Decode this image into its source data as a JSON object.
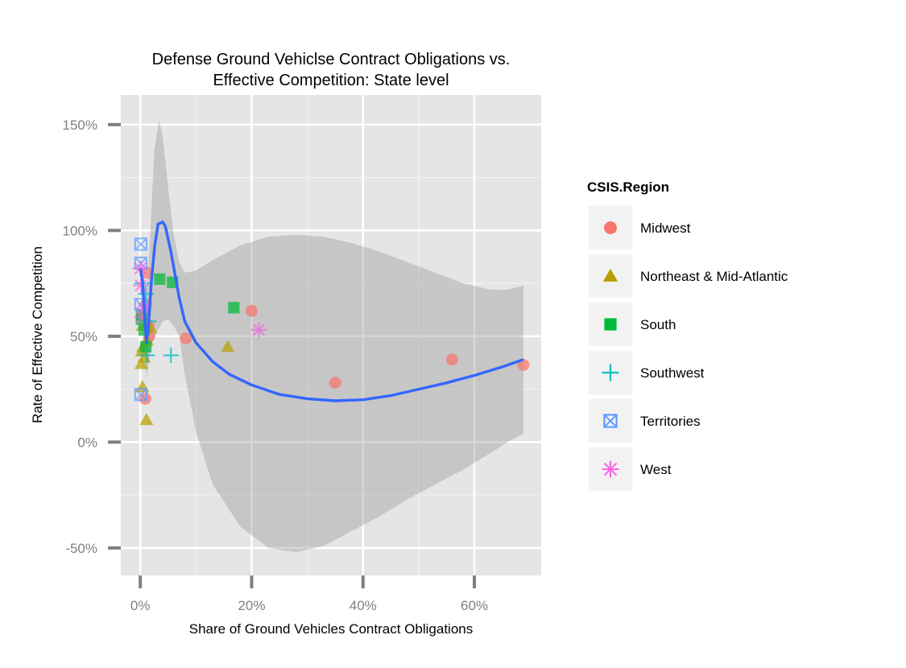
{
  "chart_data": {
    "type": "scatter",
    "title_lines": [
      "Defense Ground Vehiclse Contract Obligations vs.",
      "Effective Competition: State level"
    ],
    "xlabel": "Share of Ground Vehicles Contract Obligations",
    "ylabel": "Rate of Effective Competition",
    "xlim": [
      -0.035,
      0.72
    ],
    "ylim": [
      -0.63,
      1.64
    ],
    "x_ticks": [
      0,
      0.2,
      0.4,
      0.6
    ],
    "x_tick_labels": [
      "0%",
      "20%",
      "40%",
      "60%"
    ],
    "y_ticks": [
      -0.5,
      0,
      0.5,
      1.0,
      1.5
    ],
    "y_tick_labels": [
      "-50%",
      "0%",
      "50%",
      "100%",
      "150%"
    ],
    "grid": true,
    "legend_position": "right",
    "legend": {
      "title": "CSIS.Region",
      "items": [
        {
          "label": "Midwest",
          "color": "#F8766D",
          "shape": "circle"
        },
        {
          "label": "Northeast & Mid-Atlantic",
          "color": "#B79F00",
          "shape": "triangle"
        },
        {
          "label": "South",
          "color": "#00BA38",
          "shape": "square"
        },
        {
          "label": "Southwest",
          "color": "#00BFC4",
          "shape": "plus"
        },
        {
          "label": "Territories",
          "color": "#619CFF",
          "shape": "boxcross"
        },
        {
          "label": "West",
          "color": "#F564E3",
          "shape": "asterisk"
        }
      ]
    },
    "series": [
      {
        "name": "Midwest",
        "points": [
          [
            0.009,
            0.205
          ],
          [
            0.082,
            0.49
          ],
          [
            0.2,
            0.62
          ],
          [
            0.35,
            0.28
          ],
          [
            0.56,
            0.39
          ],
          [
            0.688,
            0.365
          ],
          [
            0.012,
            0.8
          ],
          [
            0.01,
            0.65
          ],
          [
            0.015,
            0.55
          ],
          [
            0.016,
            0.5
          ]
        ]
      },
      {
        "name": "Northeast & Mid-Atlantic",
        "points": [
          [
            0.011,
            0.105
          ],
          [
            0.004,
            0.26
          ],
          [
            0.002,
            0.37
          ],
          [
            0.003,
            0.43
          ],
          [
            0.005,
            0.45
          ],
          [
            0.007,
            0.4
          ],
          [
            0.004,
            0.55
          ],
          [
            0.018,
            0.54
          ],
          [
            0.012,
            0.48
          ],
          [
            0.157,
            0.45
          ]
        ]
      },
      {
        "name": "South",
        "points": [
          [
            0.035,
            0.77
          ],
          [
            0.058,
            0.755
          ],
          [
            0.168,
            0.635
          ],
          [
            0.003,
            0.6
          ],
          [
            0.007,
            0.53
          ],
          [
            0.01,
            0.45
          ],
          [
            0.002,
            0.58
          ]
        ]
      },
      {
        "name": "Southwest",
        "points": [
          [
            0.055,
            0.41
          ],
          [
            0.012,
            0.41
          ],
          [
            0.015,
            0.57
          ],
          [
            0.01,
            0.7
          ],
          [
            0.003,
            0.75
          ]
        ]
      },
      {
        "name": "Territories",
        "points": [
          [
            0.001,
            0.935
          ],
          [
            0.001,
            0.845
          ],
          [
            0.001,
            0.65
          ],
          [
            0.001,
            0.225
          ]
        ]
      },
      {
        "name": "West",
        "points": [
          [
            0.213,
            0.53
          ],
          [
            0.0,
            0.82
          ],
          [
            0.001,
            0.74
          ],
          [
            0.002,
            0.59
          ],
          [
            0.006,
            0.63
          ]
        ]
      }
    ],
    "smooth": {
      "method": "loess",
      "color": "#3366FF",
      "fit": [
        [
          0.0,
          0.82
        ],
        [
          0.004,
          0.76
        ],
        [
          0.008,
          0.6
        ],
        [
          0.011,
          0.47
        ],
        [
          0.015,
          0.56
        ],
        [
          0.02,
          0.76
        ],
        [
          0.026,
          0.93
        ],
        [
          0.032,
          1.03
        ],
        [
          0.04,
          1.04
        ],
        [
          0.045,
          1.02
        ],
        [
          0.055,
          0.9
        ],
        [
          0.07,
          0.68
        ],
        [
          0.08,
          0.57
        ],
        [
          0.1,
          0.47
        ],
        [
          0.13,
          0.38
        ],
        [
          0.16,
          0.32
        ],
        [
          0.2,
          0.27
        ],
        [
          0.25,
          0.225
        ],
        [
          0.3,
          0.205
        ],
        [
          0.35,
          0.195
        ],
        [
          0.4,
          0.2
        ],
        [
          0.45,
          0.22
        ],
        [
          0.5,
          0.25
        ],
        [
          0.55,
          0.28
        ],
        [
          0.6,
          0.315
        ],
        [
          0.65,
          0.355
        ],
        [
          0.688,
          0.39
        ]
      ],
      "upper": [
        [
          0.0,
          0.9
        ],
        [
          0.008,
          0.75
        ],
        [
          0.011,
          0.64
        ],
        [
          0.018,
          0.98
        ],
        [
          0.025,
          1.38
        ],
        [
          0.034,
          1.52
        ],
        [
          0.04,
          1.45
        ],
        [
          0.05,
          1.2
        ],
        [
          0.06,
          0.98
        ],
        [
          0.07,
          0.85
        ],
        [
          0.08,
          0.8
        ],
        [
          0.1,
          0.81
        ],
        [
          0.13,
          0.86
        ],
        [
          0.18,
          0.93
        ],
        [
          0.23,
          0.97
        ],
        [
          0.28,
          0.98
        ],
        [
          0.33,
          0.97
        ],
        [
          0.38,
          0.94
        ],
        [
          0.43,
          0.9
        ],
        [
          0.48,
          0.85
        ],
        [
          0.53,
          0.8
        ],
        [
          0.58,
          0.75
        ],
        [
          0.63,
          0.72
        ],
        [
          0.66,
          0.72
        ],
        [
          0.688,
          0.74
        ]
      ],
      "lower": [
        [
          0.688,
          0.04
        ],
        [
          0.66,
          0.0
        ],
        [
          0.63,
          -0.05
        ],
        [
          0.58,
          -0.13
        ],
        [
          0.53,
          -0.2
        ],
        [
          0.48,
          -0.27
        ],
        [
          0.43,
          -0.35
        ],
        [
          0.38,
          -0.42
        ],
        [
          0.33,
          -0.49
        ],
        [
          0.28,
          -0.52
        ],
        [
          0.23,
          -0.5
        ],
        [
          0.18,
          -0.4
        ],
        [
          0.13,
          -0.2
        ],
        [
          0.1,
          0.05
        ],
        [
          0.08,
          0.32
        ],
        [
          0.07,
          0.5
        ],
        [
          0.06,
          0.55
        ],
        [
          0.05,
          0.58
        ],
        [
          0.04,
          0.57
        ],
        [
          0.03,
          0.52
        ],
        [
          0.02,
          0.46
        ],
        [
          0.011,
          0.3
        ],
        [
          0.008,
          0.45
        ],
        [
          0.0,
          0.75
        ]
      ]
    }
  }
}
